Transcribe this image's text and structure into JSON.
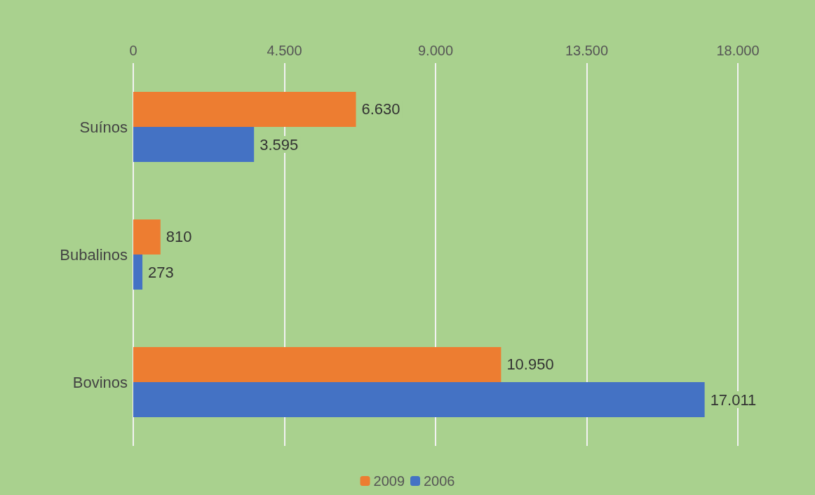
{
  "chart_data": {
    "type": "bar",
    "orientation": "horizontal",
    "categories": [
      "Suínos",
      "Bubalinos",
      "Bovinos"
    ],
    "series": [
      {
        "name": "2009",
        "color": "#ed7d31",
        "values": [
          6630,
          810,
          10950
        ],
        "value_labels": [
          "6.630",
          "810",
          "10.950"
        ]
      },
      {
        "name": "2006",
        "color": "#4472c4",
        "values": [
          3595,
          273,
          17011
        ],
        "value_labels": [
          "3.595",
          "273",
          "17.011"
        ]
      }
    ],
    "xlim": [
      0,
      18000
    ],
    "xticks": [
      {
        "value": 0,
        "label": "0"
      },
      {
        "value": 4500,
        "label": "4.500"
      },
      {
        "value": 9000,
        "label": "9.000"
      },
      {
        "value": 13500,
        "label": "13.500"
      },
      {
        "value": 18000,
        "label": "18.000"
      }
    ],
    "grid": "x",
    "legend": "bottom"
  }
}
